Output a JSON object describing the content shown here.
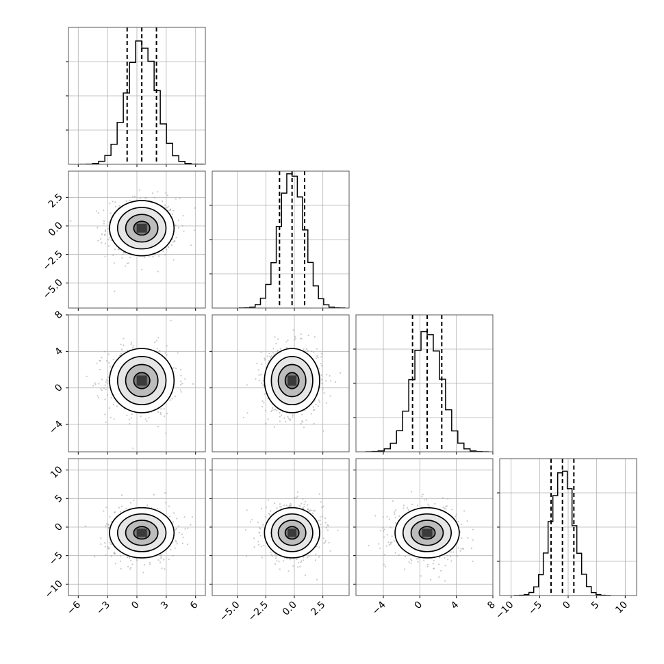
{
  "chart_data": {
    "type": "corner",
    "grid": true,
    "variables": [
      {
        "mean": 0.5,
        "sd": 1.5,
        "lim": [
          -7,
          7
        ],
        "ylim2d": [
          -7.2,
          4.8
        ],
        "ticks": [
          -6,
          -3,
          0,
          3,
          6
        ],
        "tick_labels": [
          "−6",
          "−3",
          "0",
          "3",
          "6"
        ],
        "quantiles": [
          -1.0,
          0.5,
          2.0
        ]
      },
      {
        "mean": -0.2,
        "sd": 1.1,
        "lim": [
          -7.2,
          4.8
        ],
        "ticks": [
          -5.0,
          -2.5,
          0.0,
          2.5
        ],
        "tick_labels": [
          "−5.0",
          "−2.5",
          "0.0",
          "2.5"
        ],
        "quantiles": [
          -1.3,
          -0.2,
          0.9
        ]
      },
      {
        "mean": 0.8,
        "sd": 1.6,
        "lim": [
          -7,
          8
        ],
        "ticks": [
          -4,
          0,
          4,
          8
        ],
        "tick_labels": [
          "−4",
          "0",
          "4",
          "8"
        ],
        "quantiles": [
          -0.8,
          0.8,
          2.4
        ]
      },
      {
        "mean": -1.0,
        "sd": 2.0,
        "lim": [
          -12,
          12
        ],
        "ticks": [
          -10,
          -5,
          0,
          5,
          10
        ],
        "tick_labels": [
          "−10",
          "−5",
          "0",
          "5",
          "10"
        ],
        "quantiles": [
          -3.0,
          -1.0,
          1.0
        ]
      }
    ],
    "hist_peaks": [
      0.9,
      1.0,
      0.9,
      0.92
    ],
    "hist_bins": 20,
    "contour_levels_sigma": [
      0.5,
      1.0,
      1.5,
      2.0
    ],
    "scatter_points_per_panel": 600
  }
}
